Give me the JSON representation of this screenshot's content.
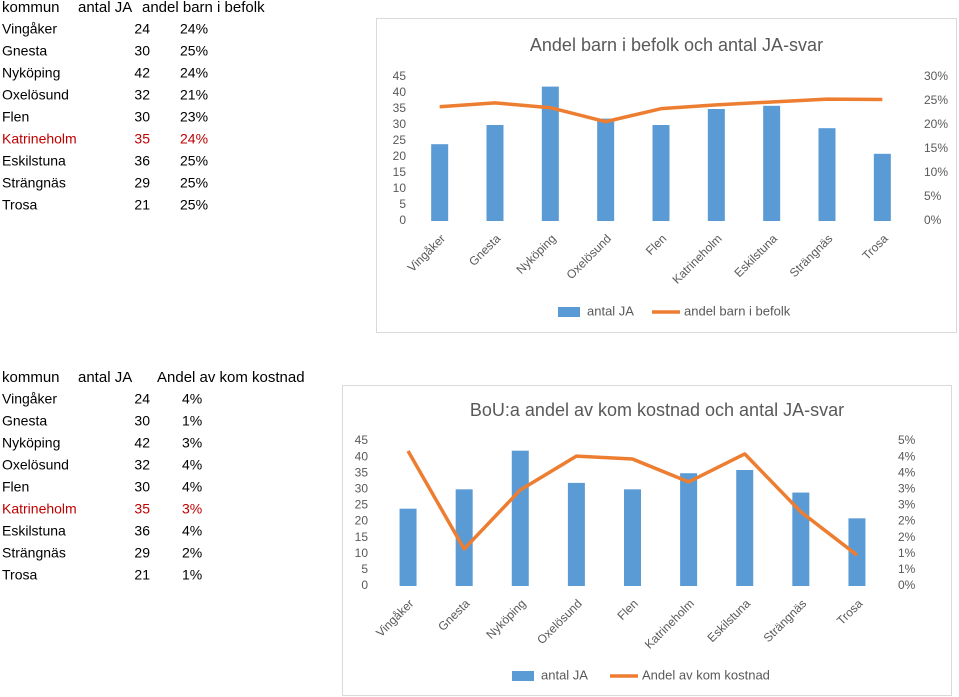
{
  "tables": [
    {
      "header": [
        "kommun",
        "antal JA",
        "andel barn i befolk"
      ],
      "rows": [
        [
          "Vingåker",
          "24",
          "24%"
        ],
        [
          "Gnesta",
          "30",
          "25%"
        ],
        [
          "Nyköping",
          "42",
          "24%"
        ],
        [
          "Oxelösund",
          "32",
          "21%"
        ],
        [
          "Flen",
          "30",
          "23%"
        ],
        [
          "Katrineholm",
          "35",
          "24%"
        ],
        [
          "Eskilstuna",
          "36",
          "25%"
        ],
        [
          "Strängnäs",
          "29",
          "25%"
        ],
        [
          "Trosa",
          "21",
          "25%"
        ]
      ]
    },
    {
      "header": [
        "kommun",
        "antal JA",
        "Andel av kom kostnad"
      ],
      "rows": [
        [
          "Vingåker",
          "24",
          "4%"
        ],
        [
          "Gnesta",
          "30",
          "1%"
        ],
        [
          "Nyköping",
          "42",
          "3%"
        ],
        [
          "Oxelösund",
          "32",
          "4%"
        ],
        [
          "Flen",
          "30",
          "4%"
        ],
        [
          "Katrineholm",
          "35",
          "3%"
        ],
        [
          "Eskilstuna",
          "36",
          "4%"
        ],
        [
          "Strängnäs",
          "29",
          "2%"
        ],
        [
          "Trosa",
          "21",
          "1%"
        ]
      ]
    }
  ],
  "chart_data": [
    {
      "type": "bar",
      "title": "Andel barn i befolk och antal JA-svar",
      "categories": [
        "Vingåker",
        "Gnesta",
        "Nyköping",
        "Oxelösund",
        "Flen",
        "Katrineholm",
        "Eskilstuna",
        "Strängnäs",
        "Trosa"
      ],
      "series": [
        {
          "name": "antal JA",
          "type": "bar",
          "color": "#5b9bd5",
          "values": [
            24,
            30,
            42,
            32,
            30,
            35,
            36,
            29,
            21
          ]
        },
        {
          "name": "andel barn i befolk",
          "type": "line",
          "axis": "y2",
          "color": "#ed7d31",
          "values": [
            23.8,
            24.6,
            23.6,
            20.7,
            23.4,
            24.2,
            24.8,
            25.4,
            25.3
          ]
        }
      ],
      "ylim": [
        0,
        45
      ],
      "yticks": [
        0,
        5,
        10,
        15,
        20,
        25,
        30,
        35,
        40,
        45
      ],
      "y2lim": [
        0,
        30
      ],
      "y2ticks": [
        {
          "value": 0,
          "label": "0%"
        },
        {
          "value": 5,
          "label": "5%"
        },
        {
          "value": 10,
          "label": "10%"
        },
        {
          "value": 15,
          "label": "15%"
        },
        {
          "value": 20,
          "label": "20%"
        },
        {
          "value": 25,
          "label": "25%"
        },
        {
          "value": 30,
          "label": "30%"
        }
      ],
      "legend": "bottom"
    },
    {
      "type": "bar",
      "title": "BoU:a andel av kom kostnad och antal JA-svar",
      "categories": [
        "Vingåker",
        "Gnesta",
        "Nyköping",
        "Oxelösund",
        "Flen",
        "Katrineholm",
        "Eskilstuna",
        "Strängnäs",
        "Trosa"
      ],
      "series": [
        {
          "name": "antal JA",
          "type": "bar",
          "color": "#5b9bd5",
          "values": [
            24,
            30,
            42,
            32,
            30,
            35,
            36,
            29,
            21
          ]
        },
        {
          "name": "Andel av kom kostnad",
          "type": "line",
          "axis": "y2",
          "color": "#ed7d31",
          "values": [
            4.19,
            1.15,
            2.98,
            4.03,
            3.94,
            3.23,
            4.1,
            2.3,
            0.96
          ]
        }
      ],
      "ylim": [
        0,
        45
      ],
      "yticks": [
        0,
        5,
        10,
        15,
        20,
        25,
        30,
        35,
        40,
        45
      ],
      "y2lim": [
        0,
        4.5
      ],
      "y2ticks": [
        {
          "value": 0,
          "label": "0%"
        },
        {
          "value": 0.5,
          "label": "1%"
        },
        {
          "value": 1,
          "label": "1%"
        },
        {
          "value": 1.5,
          "label": "2%"
        },
        {
          "value": 2,
          "label": "2%"
        },
        {
          "value": 2.5,
          "label": "3%"
        },
        {
          "value": 3,
          "label": "3%"
        },
        {
          "value": 3.5,
          "label": "4%"
        },
        {
          "value": 4,
          "label": "4%"
        },
        {
          "value": 4.5,
          "label": "5%"
        }
      ],
      "legend": "bottom"
    }
  ]
}
